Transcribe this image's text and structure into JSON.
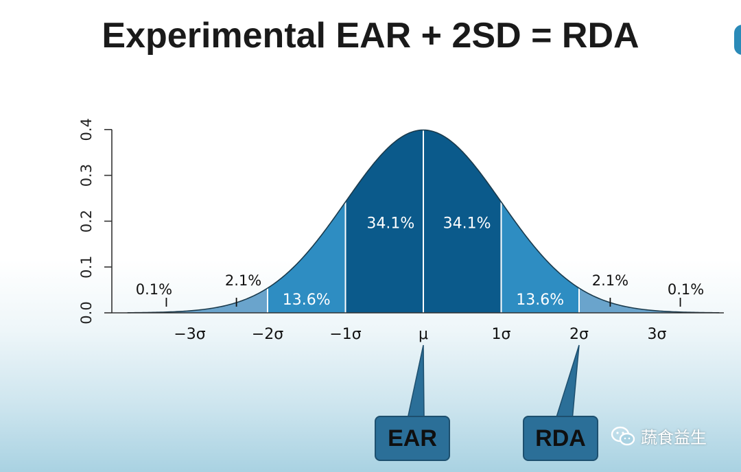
{
  "slide": {
    "title": "Experimental EAR + 2SD = RDA"
  },
  "chart_data": {
    "type": "area",
    "title": "",
    "xlabel": "",
    "ylabel": "",
    "distribution": "normal",
    "mean": 0,
    "sd": 1,
    "xlim": [
      -3.8,
      3.8
    ],
    "ylim": [
      0,
      0.4
    ],
    "y_ticks": [
      0.0,
      0.1,
      0.2,
      0.3,
      0.4
    ],
    "y_tick_labels": [
      "0.0",
      "0.1",
      "0.2",
      "0.3",
      "0.4"
    ],
    "x_ticks": [
      -3,
      -2,
      -1,
      0,
      1,
      2,
      3
    ],
    "x_tick_labels": [
      "−3σ",
      "−2σ",
      "−1σ",
      "μ",
      "1σ",
      "2σ",
      "3σ"
    ],
    "regions": [
      {
        "from": -3.8,
        "to": -2,
        "percent": "2.1%",
        "color": "#6aa4cc"
      },
      {
        "from": -2,
        "to": -1,
        "percent": "13.6%",
        "color": "#2e8dc2"
      },
      {
        "from": -1,
        "to": 0,
        "percent": "34.1%",
        "color": "#0b5a8b"
      },
      {
        "from": 0,
        "to": 1,
        "percent": "34.1%",
        "color": "#0b5a8b"
      },
      {
        "from": 1,
        "to": 2,
        "percent": "13.6%",
        "color": "#2e8dc2"
      },
      {
        "from": 2,
        "to": 3.8,
        "percent": "2.1%",
        "color": "#6aa4cc"
      }
    ],
    "tail_labels": [
      {
        "text": "0.1%",
        "at": -3.3
      },
      {
        "text": "2.1%",
        "at": -2.4
      },
      {
        "text": "2.1%",
        "at": 2.4
      },
      {
        "text": "0.1%",
        "at": 3.3
      }
    ],
    "inner_labels": [
      {
        "text": "13.6%",
        "at": -1.5,
        "y": 0.018
      },
      {
        "text": "34.1%",
        "at": -0.42,
        "y": 0.185
      },
      {
        "text": "34.1%",
        "at": 0.56,
        "y": 0.185
      },
      {
        "text": "13.6%",
        "at": 1.5,
        "y": 0.018
      }
    ],
    "callouts": [
      {
        "label": "EAR",
        "points_to": 0
      },
      {
        "label": "RDA",
        "points_to": 2
      }
    ]
  },
  "colors": {
    "curve": "#1a3a4c",
    "callout_fill": "#2b6f98",
    "axis": "#333333"
  },
  "watermark": {
    "icon": "wechat-icon",
    "text": "蔬食益生"
  }
}
